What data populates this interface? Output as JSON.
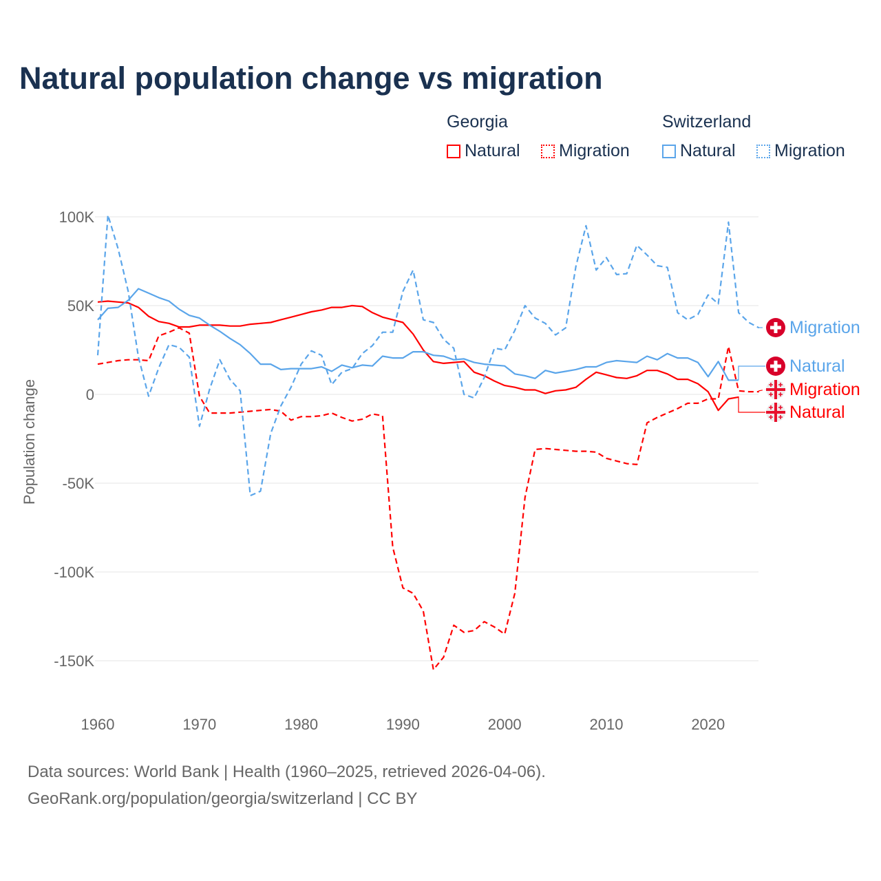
{
  "title": "Natural population change vs migration",
  "legend": {
    "groups": [
      {
        "name": "Georgia",
        "items": [
          "Natural",
          "Migration"
        ],
        "color": "#ff0000"
      },
      {
        "name": "Switzerland",
        "items": [
          "Natural",
          "Migration"
        ],
        "color": "#5aa5ea"
      }
    ]
  },
  "end_labels": [
    {
      "label": "Migration",
      "country": "Switzerland",
      "color": "#5aa5ea",
      "icon": "swiss-flag-icon"
    },
    {
      "label": "Natural",
      "country": "Switzerland",
      "color": "#5aa5ea",
      "icon": "swiss-flag-icon"
    },
    {
      "label": "Migration",
      "country": "Georgia",
      "color": "#ff0000",
      "icon": "georgia-flag-icon"
    },
    {
      "label": "Natural",
      "country": "Georgia",
      "color": "#ff0000",
      "icon": "georgia-flag-icon"
    }
  ],
  "footer": {
    "line1": "Data sources: World Bank | Health (1960–2025, retrieved 2026-04-06).",
    "line2": "GeoRank.org/population/georgia/switzerland | CC BY"
  },
  "chart_data": {
    "type": "line",
    "title": "Natural population change vs migration",
    "xlabel": "",
    "ylabel": "Population change",
    "xlim": [
      1960,
      2025
    ],
    "ylim": [
      -170000,
      100000
    ],
    "x_ticks": [
      1960,
      1970,
      1980,
      1990,
      2000,
      2010,
      2020
    ],
    "y_ticks": [
      100000,
      50000,
      0,
      -50000,
      -100000,
      -150000
    ],
    "y_tick_labels": [
      "100K",
      "50K",
      "0",
      "-50K",
      "-100K",
      "-150K"
    ],
    "grid": true,
    "legend_position": "top-right",
    "start_year": 1960,
    "series": [
      {
        "name": "Georgia Natural",
        "color": "#ff0000",
        "dash": false,
        "label_index": 3,
        "values": [
          52,
          52.5,
          52,
          51.5,
          49,
          44,
          41,
          40,
          38,
          38,
          39,
          39,
          39,
          38.5,
          38.5,
          39.5,
          40,
          40.5,
          42,
          43.5,
          45,
          46.5,
          47.5,
          49,
          49,
          50,
          49.5,
          46,
          43.5,
          42,
          40.5,
          34,
          25,
          18.5,
          17.5,
          18,
          18.5,
          12.5,
          10.5,
          7.5,
          5,
          4,
          2.5,
          2.5,
          0.5,
          2,
          2.5,
          4,
          8.5,
          12.5,
          11,
          9.5,
          9,
          10.5,
          13.5,
          13.5,
          11.5,
          8.5,
          8.5,
          6,
          1.5,
          -9,
          -2.5,
          -1.5
        ]
      },
      {
        "name": "Georgia Migration",
        "color": "#ff0000",
        "dash": true,
        "label_index": 2,
        "values": [
          17,
          18,
          19,
          19.5,
          19.5,
          19,
          33,
          35,
          37.5,
          34.5,
          -1,
          -10.5,
          -10.5,
          -10.5,
          -10,
          -9.5,
          -9,
          -8.5,
          -9.5,
          -14.5,
          -12.5,
          -12.5,
          -12,
          -10.5,
          -13,
          -15,
          -14,
          -11,
          -12,
          -86,
          -109,
          -112,
          -122,
          -155,
          -148,
          -130,
          -134,
          -133,
          -128,
          -131,
          -135,
          -112,
          -58,
          -31,
          -30.5,
          -31,
          -31.5,
          -32,
          -32,
          -32.5,
          -36,
          -37.5,
          -39,
          -39.5,
          -16,
          -13,
          -10.5,
          -8,
          -5,
          -5,
          -2.5,
          -2.5,
          27,
          2,
          1.5,
          1.5
        ]
      },
      {
        "name": "Switzerland Natural",
        "color": "#5aa5ea",
        "dash": false,
        "label_index": 1,
        "values": [
          42,
          48.5,
          49,
          53,
          59.5,
          57,
          54.5,
          52.5,
          48,
          44.5,
          43,
          39,
          35.5,
          31.5,
          28,
          23,
          17,
          17,
          14,
          14.5,
          14.5,
          14.5,
          15.5,
          13,
          16.5,
          15,
          16.5,
          16,
          21.5,
          20.5,
          20.5,
          24,
          24,
          22,
          21.5,
          19.5,
          20,
          18,
          17,
          16.5,
          16,
          11.5,
          10.5,
          9,
          13.5,
          12,
          13,
          14,
          15.5,
          15.5,
          18,
          19,
          18.5,
          18,
          21.5,
          19.5,
          23,
          20.5,
          20.5,
          18,
          10,
          18.5,
          8,
          8
        ]
      },
      {
        "name": "Switzerland Migration",
        "color": "#5aa5ea",
        "dash": true,
        "label_index": 0,
        "values": [
          22,
          101,
          82,
          58,
          21,
          -1,
          15,
          28,
          26.5,
          21,
          -18,
          3,
          19.5,
          8.5,
          2,
          -57,
          -54.5,
          -22,
          -6.5,
          4,
          17,
          24.5,
          22,
          5.5,
          12.5,
          14.5,
          23,
          27.5,
          35,
          35,
          58,
          70,
          42,
          40.5,
          31,
          26,
          0,
          -2,
          9.5,
          26,
          25,
          36,
          50,
          43,
          40,
          33.5,
          37.5,
          72,
          95,
          70,
          77,
          67.5,
          68,
          84,
          78.5,
          72.5,
          71.5,
          46,
          42,
          45,
          56,
          51,
          97,
          46,
          40.5,
          37.5
        ]
      }
    ],
    "value_unit": "thousands"
  }
}
